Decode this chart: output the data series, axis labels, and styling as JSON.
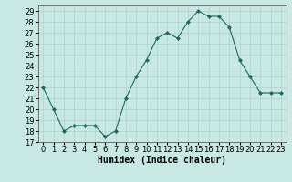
{
  "x": [
    0,
    1,
    2,
    3,
    4,
    5,
    6,
    7,
    8,
    9,
    10,
    11,
    12,
    13,
    14,
    15,
    16,
    17,
    18,
    19,
    20,
    21,
    22,
    23
  ],
  "y": [
    22,
    20,
    18,
    18.5,
    18.5,
    18.5,
    17.5,
    18,
    21,
    23,
    24.5,
    26.5,
    27,
    26.5,
    28,
    29,
    28.5,
    28.5,
    27.5,
    24.5,
    23,
    21.5,
    21.5,
    21.5
  ],
  "line_color": "#1a6b5a",
  "marker": "D",
  "marker_size": 2.0,
  "bg_color": "#c8e8e4",
  "grid_color": "#b0d0cc",
  "xlabel": "Humidex (Indice chaleur)",
  "xlim": [
    -0.5,
    23.5
  ],
  "ylim": [
    17,
    29.5
  ],
  "yticks": [
    17,
    18,
    19,
    20,
    21,
    22,
    23,
    24,
    25,
    26,
    27,
    28,
    29
  ],
  "xtick_labels": [
    "0",
    "1",
    "2",
    "3",
    "4",
    "5",
    "6",
    "7",
    "8",
    "9",
    "10",
    "11",
    "12",
    "13",
    "14",
    "15",
    "16",
    "17",
    "18",
    "19",
    "20",
    "21",
    "22",
    "23"
  ],
  "tick_fontsize": 6,
  "xlabel_fontsize": 7
}
